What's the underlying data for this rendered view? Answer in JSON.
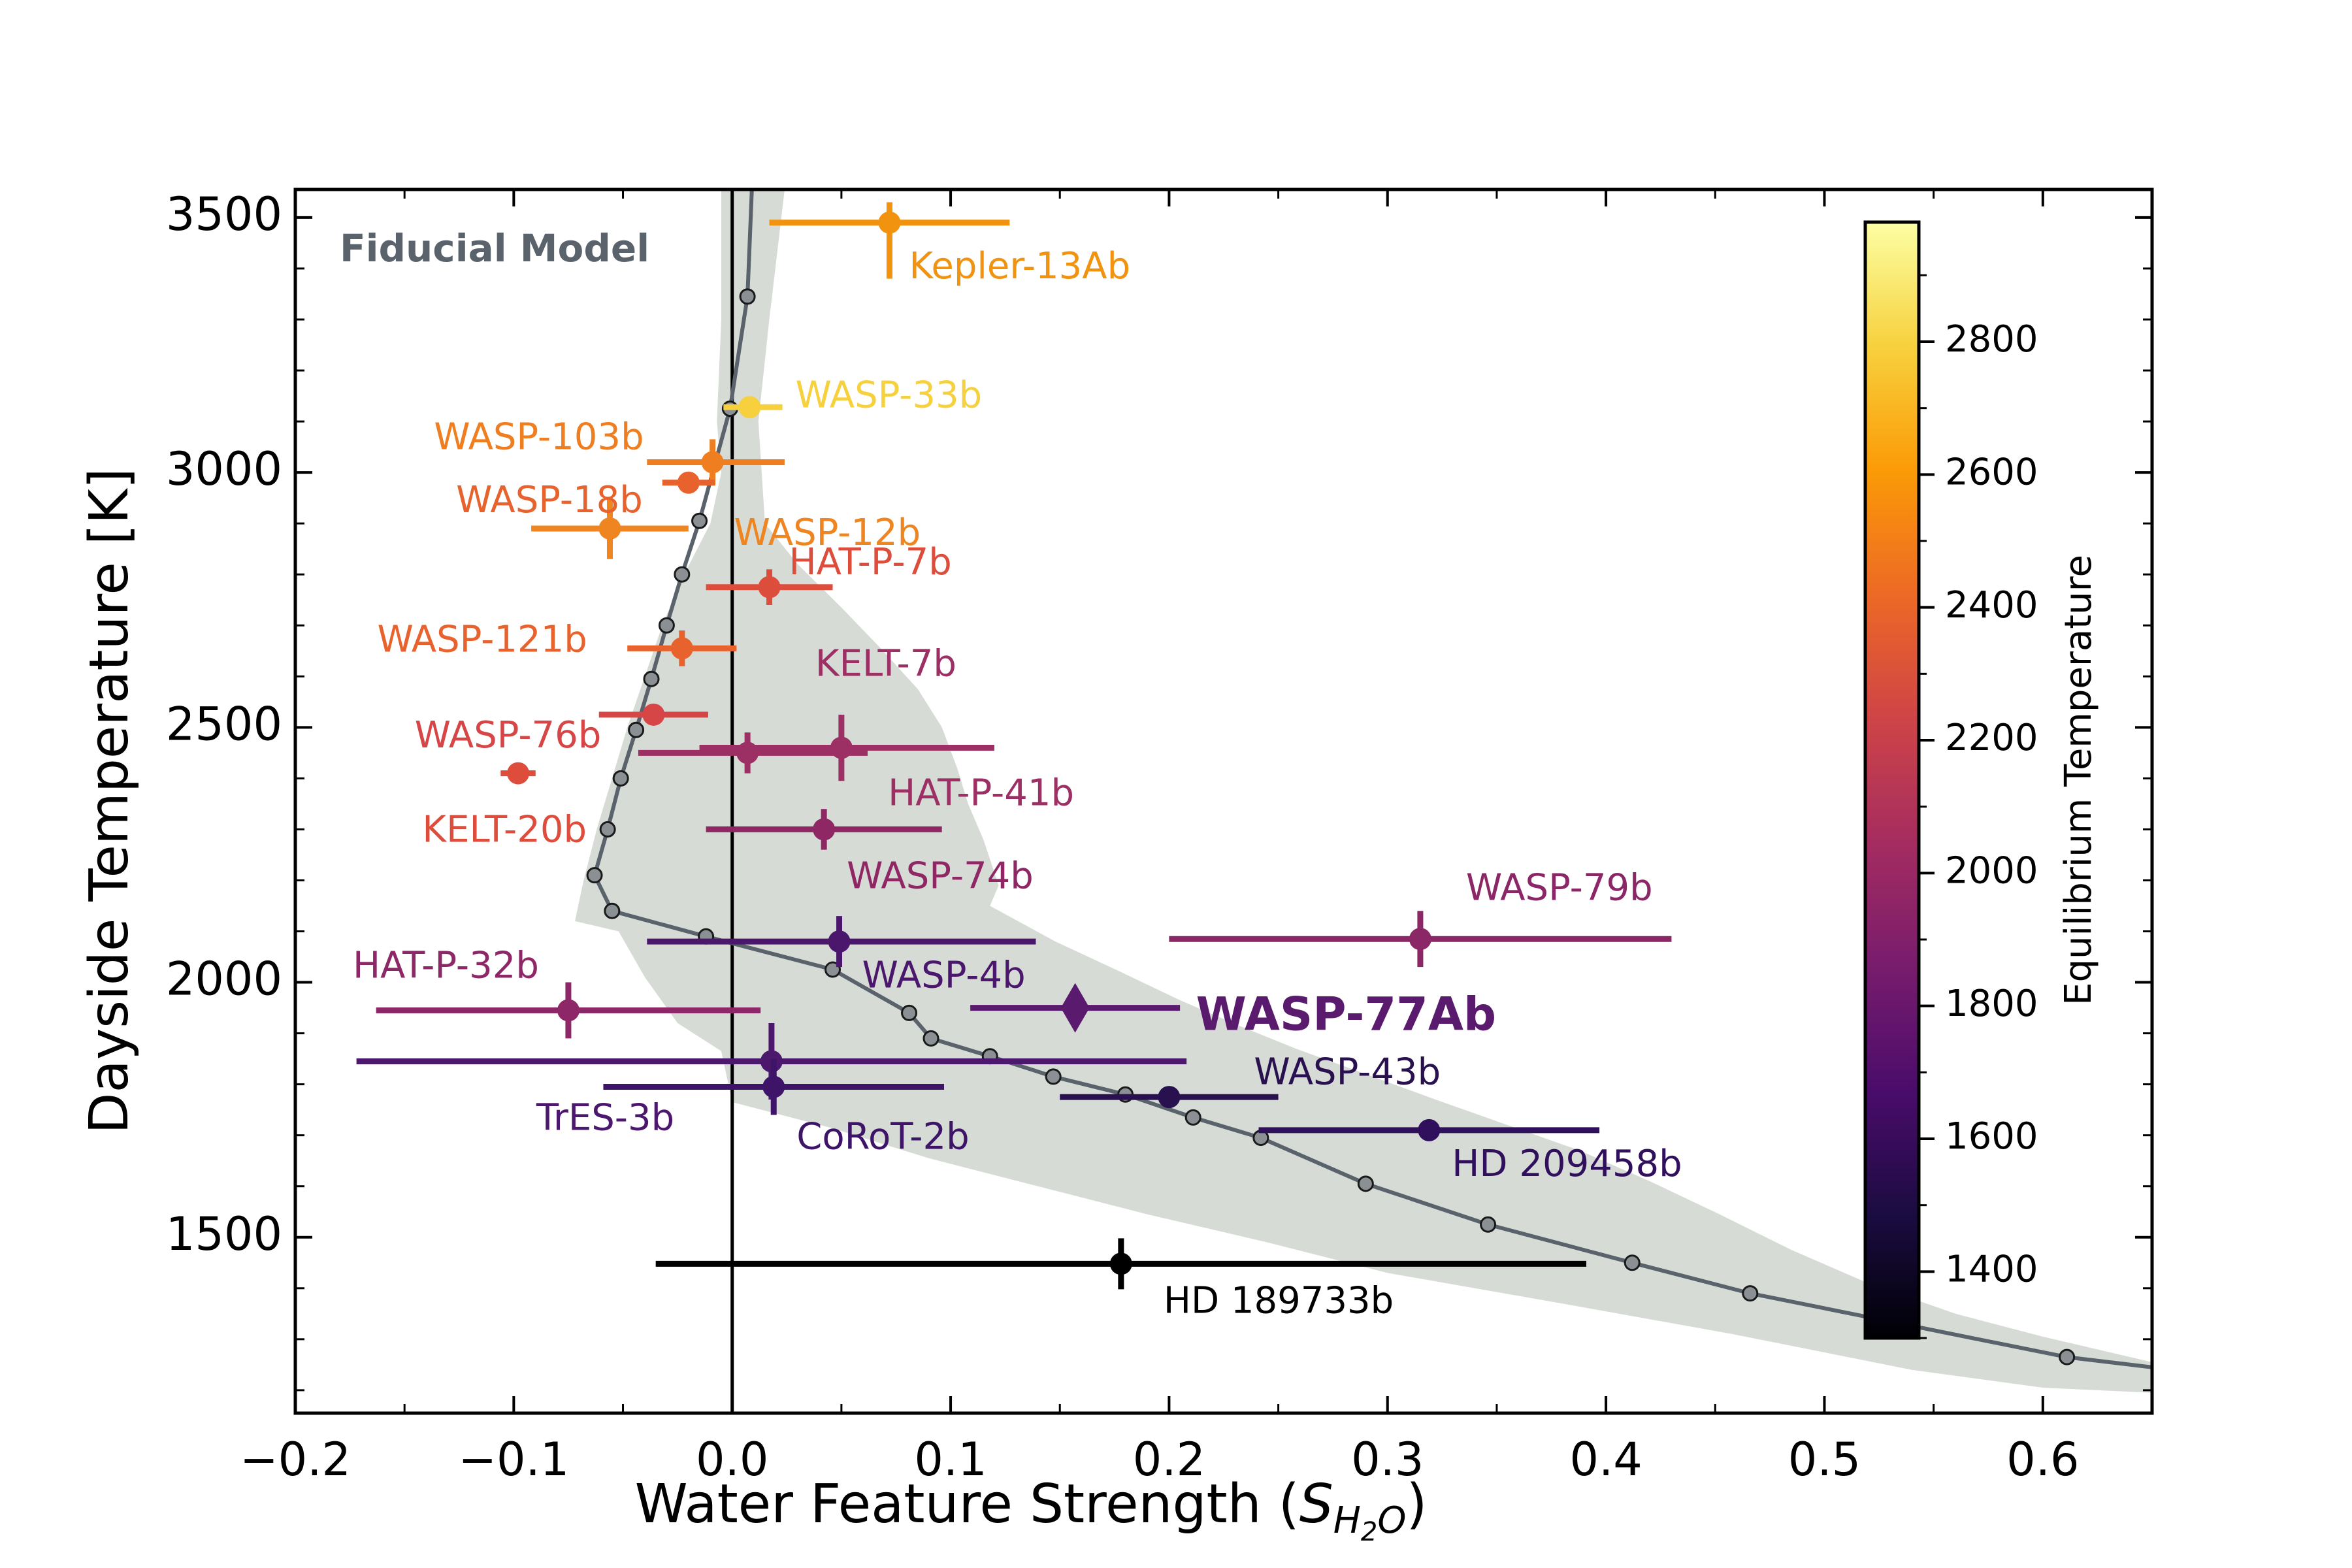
{
  "chart_data": {
    "type": "scatter",
    "xlabel": "Water Feature Strength",
    "xlabel_symbol": "S",
    "xlabel_subscript": "H",
    "xlabel_subsub": "2",
    "xlabel_subtail": "O",
    "ylabel": "Dayside Temperature [K]",
    "xlim": [
      -0.2,
      0.65
    ],
    "ylim": [
      1155,
      3555
    ],
    "xticks": [
      -0.2,
      -0.1,
      0.0,
      0.1,
      0.2,
      0.3,
      0.4,
      0.5,
      0.6
    ],
    "xtick_labels": [
      "−0.2",
      "−0.1",
      "0.0",
      "0.1",
      "0.2",
      "0.3",
      "0.4",
      "0.5",
      "0.6"
    ],
    "yticks": [
      1500,
      2000,
      2500,
      3000,
      3500
    ],
    "ytick_labels": [
      "1500",
      "2000",
      "2500",
      "3000",
      "3500"
    ],
    "model_label": "Fiducial Model",
    "model_color": "#5a636b",
    "band_color": "#d6dbd6",
    "model_curve": [
      {
        "x": 0.007,
        "y": 3345
      },
      {
        "x": -0.001,
        "y": 3125
      },
      {
        "x": -0.015,
        "y": 2905
      },
      {
        "x": -0.023,
        "y": 2800
      },
      {
        "x": -0.03,
        "y": 2700
      },
      {
        "x": -0.037,
        "y": 2595
      },
      {
        "x": -0.044,
        "y": 2495
      },
      {
        "x": -0.051,
        "y": 2400
      },
      {
        "x": -0.057,
        "y": 2300
      },
      {
        "x": -0.063,
        "y": 2210
      },
      {
        "x": -0.055,
        "y": 2140
      },
      {
        "x": -0.012,
        "y": 2090
      },
      {
        "x": 0.046,
        "y": 2025
      },
      {
        "x": 0.081,
        "y": 1940
      },
      {
        "x": 0.091,
        "y": 1890
      },
      {
        "x": 0.118,
        "y": 1855
      },
      {
        "x": 0.147,
        "y": 1815
      },
      {
        "x": 0.18,
        "y": 1780
      },
      {
        "x": 0.211,
        "y": 1735
      },
      {
        "x": 0.242,
        "y": 1695
      },
      {
        "x": 0.29,
        "y": 1605
      },
      {
        "x": 0.346,
        "y": 1525
      },
      {
        "x": 0.412,
        "y": 1450
      },
      {
        "x": 0.466,
        "y": 1390
      },
      {
        "x": 0.611,
        "y": 1265
      }
    ],
    "model_curve_ends": {
      "top": {
        "x": 0.009,
        "y": 3555
      },
      "bottom": {
        "x": 0.65,
        "y": 1245
      }
    },
    "band": [
      [
        0.024,
        3555
      ],
      [
        0.017,
        3300
      ],
      [
        0.012,
        3100
      ],
      [
        0.015,
        2900
      ],
      [
        0.03,
        2820
      ],
      [
        0.05,
        2735
      ],
      [
        0.068,
        2655
      ],
      [
        0.085,
        2575
      ],
      [
        0.096,
        2500
      ],
      [
        0.103,
        2420
      ],
      [
        0.108,
        2350
      ],
      [
        0.115,
        2280
      ],
      [
        0.122,
        2190
      ],
      [
        0.118,
        2150
      ],
      [
        0.148,
        2080
      ],
      [
        0.178,
        2020
      ],
      [
        0.205,
        1965
      ],
      [
        0.232,
        1915
      ],
      [
        0.258,
        1870
      ],
      [
        0.29,
        1820
      ],
      [
        0.322,
        1770
      ],
      [
        0.355,
        1720
      ],
      [
        0.388,
        1670
      ],
      [
        0.42,
        1610
      ],
      [
        0.452,
        1545
      ],
      [
        0.485,
        1475
      ],
      [
        0.52,
        1410
      ],
      [
        0.56,
        1350
      ],
      [
        0.6,
        1305
      ],
      [
        0.65,
        1255
      ],
      [
        0.65,
        1195
      ],
      [
        0.6,
        1205
      ],
      [
        0.54,
        1240
      ],
      [
        0.458,
        1310
      ],
      [
        0.38,
        1370
      ],
      [
        0.3,
        1430
      ],
      [
        0.245,
        1490
      ],
      [
        0.19,
        1545
      ],
      [
        0.14,
        1600
      ],
      [
        0.09,
        1655
      ],
      [
        0.045,
        1715
      ],
      [
        0.0,
        1765
      ],
      [
        -0.005,
        1865
      ],
      [
        -0.025,
        1920
      ],
      [
        -0.04,
        2010
      ],
      [
        -0.052,
        2100
      ],
      [
        -0.072,
        2120
      ],
      [
        -0.068,
        2200
      ],
      [
        -0.062,
        2300
      ],
      [
        -0.055,
        2400
      ],
      [
        -0.048,
        2500
      ],
      [
        -0.04,
        2600
      ],
      [
        -0.032,
        2700
      ],
      [
        -0.022,
        2800
      ],
      [
        -0.01,
        2900
      ],
      [
        -0.005,
        3000
      ],
      [
        -0.007,
        3100
      ],
      [
        -0.005,
        3300
      ],
      [
        -0.005,
        3555
      ]
    ],
    "planets": [
      {
        "name": "Kepler-13Ab",
        "x": 0.072,
        "y": 3490,
        "xerr": [
          0.055,
          0.055
        ],
        "yerr": [
          110,
          40
        ],
        "color": "#f1930f",
        "label_dx": 30,
        "label_dy": 70,
        "anchor": "start",
        "marker": "circle",
        "bold": false
      },
      {
        "name": "WASP-33b",
        "x": 0.008,
        "y": 3128,
        "xerr": [
          0.012,
          0.015
        ],
        "yerr": [
          20,
          20
        ],
        "color": "#f7d13d",
        "label_dx": 70,
        "label_dy": -15,
        "anchor": "start",
        "marker": "circle",
        "bold": false
      },
      {
        "name": "WASP-103b",
        "x": -0.009,
        "y": 3020,
        "xerr": [
          0.03,
          0.033
        ],
        "yerr": [
          45,
          45
        ],
        "color": "#ef7e20",
        "label_dx": -105,
        "label_dy": -35,
        "anchor": "end",
        "marker": "circle",
        "bold": false
      },
      {
        "name": "WASP-18b",
        "x": -0.02,
        "y": 2980,
        "xerr": [
          0.012,
          0.012
        ],
        "yerr": [
          15,
          15
        ],
        "color": "#e8622d",
        "label_dx": -70,
        "label_dy": 30,
        "anchor": "end",
        "marker": "circle",
        "bold": false
      },
      {
        "name": "WASP-12b",
        "x": -0.056,
        "y": 2890,
        "xerr": [
          0.036,
          0.036
        ],
        "yerr": [
          60,
          60
        ],
        "color": "#ef8521",
        "label_dx": 190,
        "label_dy": 10,
        "anchor": "start",
        "marker": "circle",
        "bold": false
      },
      {
        "name": "HAT-P-7b",
        "x": 0.017,
        "y": 2775,
        "xerr": [
          0.029,
          0.029
        ],
        "yerr": [
          35,
          35
        ],
        "color": "#dc4d3c",
        "label_dx": 30,
        "label_dy": -35,
        "anchor": "start",
        "marker": "circle",
        "bold": false
      },
      {
        "name": "WASP-121b",
        "x": -0.023,
        "y": 2655,
        "xerr": [
          0.025,
          0.025
        ],
        "yerr": [
          35,
          35
        ],
        "color": "#e8622d",
        "label_dx": -145,
        "label_dy": -10,
        "anchor": "end",
        "marker": "circle",
        "bold": false
      },
      {
        "name": "KELT-7b",
        "x": 0.05,
        "y": 2460,
        "xerr": [
          0.065,
          0.07
        ],
        "yerr": [
          65,
          65
        ],
        "color": "#9c2f63",
        "label_dx": -40,
        "label_dy": -125,
        "anchor": "start",
        "marker": "circle",
        "bold": false
      },
      {
        "name": "WASP-76b",
        "x": -0.036,
        "y": 2525,
        "xerr": [
          0.025,
          0.025
        ],
        "yerr": [
          20,
          20
        ],
        "color": "#d74646",
        "label_dx": -80,
        "label_dy": 35,
        "anchor": "end",
        "marker": "circle",
        "bold": false
      },
      {
        "name": "HAT-P-41b",
        "x": 0.007,
        "y": 2450,
        "xerr": [
          0.05,
          0.055
        ],
        "yerr": [
          40,
          40
        ],
        "color": "#9c2f63",
        "label_dx": 215,
        "label_dy": 65,
        "anchor": "start",
        "marker": "circle",
        "bold": false
      },
      {
        "name": "KELT-20b",
        "x": -0.098,
        "y": 2410,
        "xerr": [
          0.008,
          0.008
        ],
        "yerr": [
          10,
          10
        ],
        "color": "#de4d3c",
        "label_dx": 105,
        "label_dy": 90,
        "anchor": "end",
        "marker": "circle",
        "bold": false
      },
      {
        "name": "WASP-74b",
        "x": 0.042,
        "y": 2300,
        "xerr": [
          0.054,
          0.054
        ],
        "yerr": [
          40,
          40
        ],
        "color": "#8f2765",
        "label_dx": 35,
        "label_dy": 75,
        "anchor": "start",
        "marker": "circle",
        "bold": false
      },
      {
        "name": "WASP-79b",
        "x": 0.315,
        "y": 2085,
        "xerr": [
          0.115,
          0.115
        ],
        "yerr": [
          55,
          55
        ],
        "color": "#8b2766",
        "label_dx": 70,
        "label_dy": -75,
        "anchor": "start",
        "marker": "circle",
        "bold": false
      },
      {
        "name": "WASP-4b",
        "x": 0.049,
        "y": 2080,
        "xerr": [
          0.088,
          0.09
        ],
        "yerr": [
          50,
          50
        ],
        "color": "#4b176d",
        "label_dx": 35,
        "label_dy": 55,
        "anchor": "start",
        "marker": "circle",
        "bold": false
      },
      {
        "name": "HAT-P-32b",
        "x": -0.075,
        "y": 1945,
        "xerr": [
          0.088,
          0.088
        ],
        "yerr": [
          55,
          55
        ],
        "color": "#8e2767",
        "label_dx": -45,
        "label_dy": -65,
        "anchor": "end",
        "marker": "circle",
        "bold": false
      },
      {
        "name": "WASP-77Ab",
        "x": 0.157,
        "y": 1950,
        "xerr": [
          0.048,
          0.048
        ],
        "yerr": [
          0,
          0
        ],
        "color": "#5a1a6e",
        "label_dx": 185,
        "label_dy": 15,
        "anchor": "start",
        "marker": "diamond",
        "bold": true
      },
      {
        "name": "TrES-3b",
        "x": 0.018,
        "y": 1845,
        "xerr": [
          0.19,
          0.19
        ],
        "yerr": [
          75,
          75
        ],
        "color": "#4c186e",
        "label_dx": -360,
        "label_dy": 90,
        "anchor": "start",
        "marker": "circle",
        "bold": false
      },
      {
        "name": "CoRoT-2b",
        "x": 0.019,
        "y": 1795,
        "xerr": [
          0.078,
          0.078
        ],
        "yerr": [
          55,
          55
        ],
        "color": "#3d1468",
        "label_dx": 35,
        "label_dy": 80,
        "anchor": "start",
        "marker": "circle",
        "bold": false
      },
      {
        "name": "WASP-43b",
        "x": 0.2,
        "y": 1775,
        "xerr": [
          0.05,
          0.05
        ],
        "yerr": [
          15,
          15
        ],
        "color": "#29104f",
        "label_dx": 130,
        "label_dy": -35,
        "anchor": "start",
        "marker": "circle",
        "bold": false
      },
      {
        "name": "HD 209458b",
        "x": 0.319,
        "y": 1710,
        "xerr": [
          0.078,
          0.078
        ],
        "yerr": [
          20,
          20
        ],
        "color": "#30105c",
        "label_dx": 35,
        "label_dy": 55,
        "anchor": "start",
        "marker": "circle",
        "bold": false
      },
      {
        "name": "HD 189733b",
        "x": 0.178,
        "y": 1448,
        "xerr": [
          0.213,
          0.213
        ],
        "yerr": [
          50,
          50
        ],
        "color": "#000000",
        "label_dx": 65,
        "label_dy": 60,
        "anchor": "start",
        "marker": "circle",
        "bold": false
      }
    ],
    "colorbar": {
      "label": "Equilibrium Temperature",
      "min": 1300,
      "max": 2980,
      "ticks": [
        1400,
        1600,
        1800,
        2000,
        2200,
        2400,
        2600,
        2800
      ],
      "tick_labels": [
        "1400",
        "1600",
        "1800",
        "2000",
        "2200",
        "2400",
        "2600",
        "2800"
      ],
      "colormap": "inferno",
      "stops": [
        "#000004",
        "#1b0c41",
        "#4a0c6b",
        "#781c6d",
        "#a52c60",
        "#cf4446",
        "#ed6925",
        "#fb9b06",
        "#f7d13d",
        "#fcffa4"
      ]
    }
  }
}
